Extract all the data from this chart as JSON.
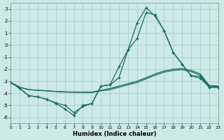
{
  "xlabel": "Humidex (Indice chaleur)",
  "bg_color": "#cce9e5",
  "grid_color": "#a8d0cc",
  "line_color": "#1a6b65",
  "xlim": [
    0,
    23
  ],
  "ylim": [
    -6.5,
    3.5
  ],
  "yticks": [
    3,
    2,
    1,
    0,
    -1,
    -2,
    -3,
    -4,
    -5,
    -6
  ],
  "xticks": [
    0,
    1,
    2,
    3,
    4,
    5,
    6,
    7,
    8,
    9,
    10,
    11,
    12,
    13,
    14,
    15,
    16,
    17,
    18,
    19,
    20,
    21,
    22,
    23
  ],
  "series_marker1_x": [
    0,
    1,
    2,
    3,
    4,
    5,
    6,
    7,
    8,
    9,
    10,
    11,
    12,
    13,
    14,
    15,
    16,
    17,
    18,
    19,
    20,
    21,
    22,
    23
  ],
  "series_marker1_y": [
    -3.1,
    -3.6,
    -4.2,
    -4.3,
    -4.5,
    -4.85,
    -5.3,
    -5.85,
    -5.0,
    -4.85,
    -3.4,
    -3.3,
    -1.8,
    -0.4,
    0.55,
    2.7,
    2.5,
    1.2,
    -0.6,
    -1.6,
    -2.55,
    -2.6,
    -3.5,
    -3.5
  ],
  "series_marker2_x": [
    0,
    1,
    2,
    3,
    4,
    5,
    6,
    7,
    8,
    9,
    10,
    11,
    12,
    13,
    14,
    15,
    16,
    17,
    18,
    19,
    20,
    21,
    22,
    23
  ],
  "series_marker2_y": [
    -3.1,
    -3.6,
    -4.2,
    -4.3,
    -4.5,
    -4.8,
    -5.0,
    -5.6,
    -5.1,
    -4.85,
    -3.4,
    -3.3,
    -2.7,
    -0.4,
    1.85,
    3.1,
    2.4,
    1.2,
    -0.6,
    -1.6,
    -2.55,
    -2.75,
    -3.5,
    -3.5
  ],
  "series_smooth1_x": [
    0,
    1,
    2,
    3,
    4,
    5,
    6,
    7,
    8,
    9,
    10,
    11,
    12,
    13,
    14,
    15,
    16,
    17,
    18,
    19,
    20,
    21,
    22,
    23
  ],
  "series_smooth1_y": [
    -3.1,
    -3.5,
    -3.7,
    -3.75,
    -3.8,
    -3.85,
    -3.9,
    -3.92,
    -3.93,
    -3.94,
    -3.8,
    -3.7,
    -3.5,
    -3.3,
    -3.1,
    -2.8,
    -2.5,
    -2.25,
    -2.1,
    -2.05,
    -2.2,
    -2.5,
    -3.4,
    -3.45
  ],
  "series_smooth2_x": [
    0,
    1,
    2,
    3,
    4,
    5,
    6,
    7,
    8,
    9,
    10,
    11,
    12,
    13,
    14,
    15,
    16,
    17,
    18,
    19,
    20,
    21,
    22,
    23
  ],
  "series_smooth2_y": [
    -3.1,
    -3.5,
    -3.7,
    -3.75,
    -3.8,
    -3.85,
    -3.88,
    -3.9,
    -3.9,
    -3.9,
    -3.75,
    -3.6,
    -3.4,
    -3.2,
    -3.0,
    -2.7,
    -2.4,
    -2.15,
    -2.0,
    -1.95,
    -2.1,
    -2.4,
    -3.35,
    -3.4
  ]
}
